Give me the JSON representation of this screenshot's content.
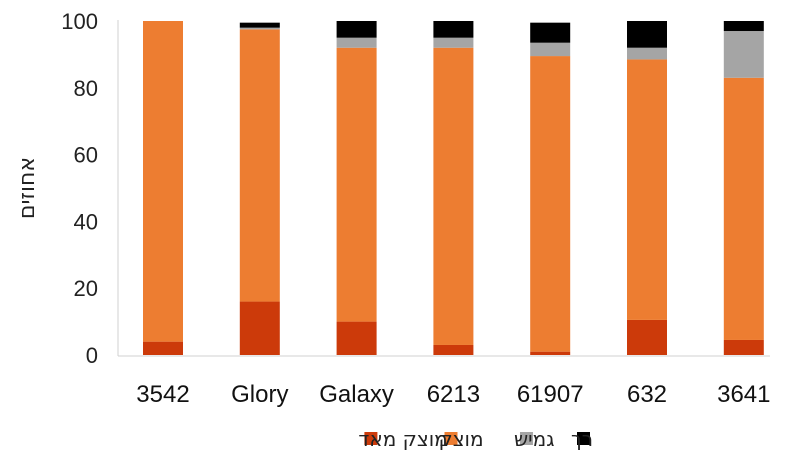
{
  "chart_data": {
    "type": "bar",
    "stacked": true,
    "categories": [
      "3542",
      "Glory",
      "Galaxy",
      "6213",
      "61907",
      "632",
      "3641"
    ],
    "series": [
      {
        "name": "מוצק מאד",
        "color": "#cc3a0a",
        "values": [
          4,
          16,
          10,
          3,
          1,
          10.5,
          4.5
        ]
      },
      {
        "name": "מוצק",
        "color": "#ed7d31",
        "values": [
          96,
          81.5,
          82,
          89,
          88.5,
          78,
          78.5
        ]
      },
      {
        "name": "גמיש",
        "color": "#a5a5a5",
        "values": [
          0,
          0.5,
          3,
          3,
          4,
          3.5,
          14
        ]
      },
      {
        "name": "רך",
        "color": "#000000",
        "values": [
          0,
          1.5,
          5,
          5,
          6,
          8,
          3
        ]
      }
    ],
    "ylabel": "אחוזים",
    "ylim": [
      0,
      100
    ],
    "yticks": [
      0,
      20,
      40,
      60,
      80,
      100
    ],
    "grid": false,
    "legend_position": "bottom",
    "legend_order": [
      "רך",
      "גמיש",
      "מוצק",
      "מוצק מאד"
    ]
  }
}
